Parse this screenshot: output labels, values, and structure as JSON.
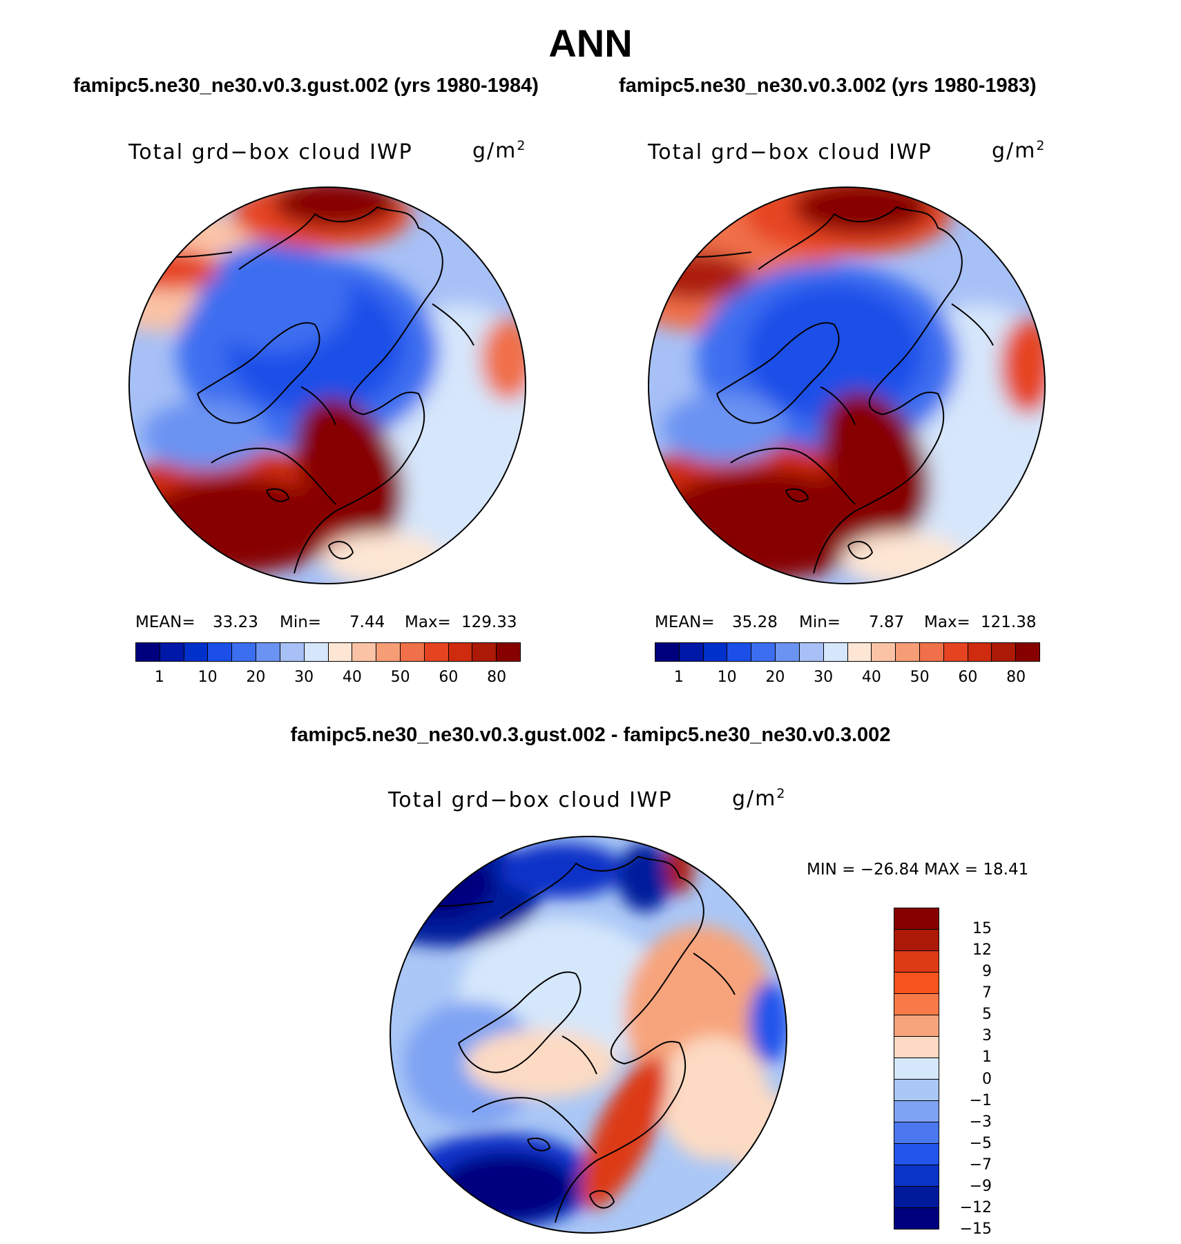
{
  "page": {
    "title": "ANN",
    "panel_left_title": "famipc5.ne30_ne30.v0.3.gust.002 (yrs 1980-1984)",
    "panel_right_title": "famipc5.ne30_ne30.v0.3.002 (yrs 1980-1983)",
    "panel_diff_title": "famipc5.ne30_ne30.v0.3.gust.002 - famipc5.ne30_ne30.v0.3.002"
  },
  "panels": {
    "left": {
      "variable": "Total grd−box cloud IWP",
      "units_base": "g/m",
      "units_exp": "2",
      "mean_label": "MEAN=",
      "mean_value": "33.23",
      "min_label": "Min=",
      "min_value": "7.44",
      "max_label": "Max=",
      "max_value": "129.33"
    },
    "right": {
      "variable": "Total grd−box cloud IWP",
      "units_base": "g/m",
      "units_exp": "2",
      "mean_label": "MEAN=",
      "mean_value": "35.28",
      "min_label": "Min=",
      "min_value": "7.87",
      "max_label": "Max=",
      "max_value": "121.38"
    },
    "diff": {
      "variable": "Total grd−box cloud IWP",
      "units_base": "g/m",
      "units_exp": "2",
      "minmax_text": "MIN = −26.84 MAX =   18.41"
    }
  },
  "colorbars": {
    "abs_colors": [
      "#00007f",
      "#0018a8",
      "#0030cc",
      "#1c4fe8",
      "#3c6ef0",
      "#6b93f2",
      "#a7c0f6",
      "#d6e6fb",
      "#fde6d4",
      "#fbc3a6",
      "#f79d76",
      "#f0704a",
      "#e64421",
      "#cf2b0e",
      "#ac1a07",
      "#870000"
    ],
    "abs_ticks": [
      "1",
      "10",
      "20",
      "30",
      "40",
      "50",
      "60",
      "80"
    ],
    "diff_colors": [
      "#870000",
      "#ac1a07",
      "#dd3a16",
      "#f7531f",
      "#f77a48",
      "#f7a47c",
      "#fcdac3",
      "#d5e7fb",
      "#aac7f6",
      "#7fa3f3",
      "#4b78ef",
      "#2255eb",
      "#0a33c8",
      "#001a9c",
      "#00007f"
    ],
    "diff_ticks": [
      "15",
      "12",
      "9",
      "7",
      "5",
      "3",
      "1",
      "0",
      "−1",
      "−3",
      "−5",
      "−7",
      "−9",
      "−12",
      "−15"
    ]
  }
}
